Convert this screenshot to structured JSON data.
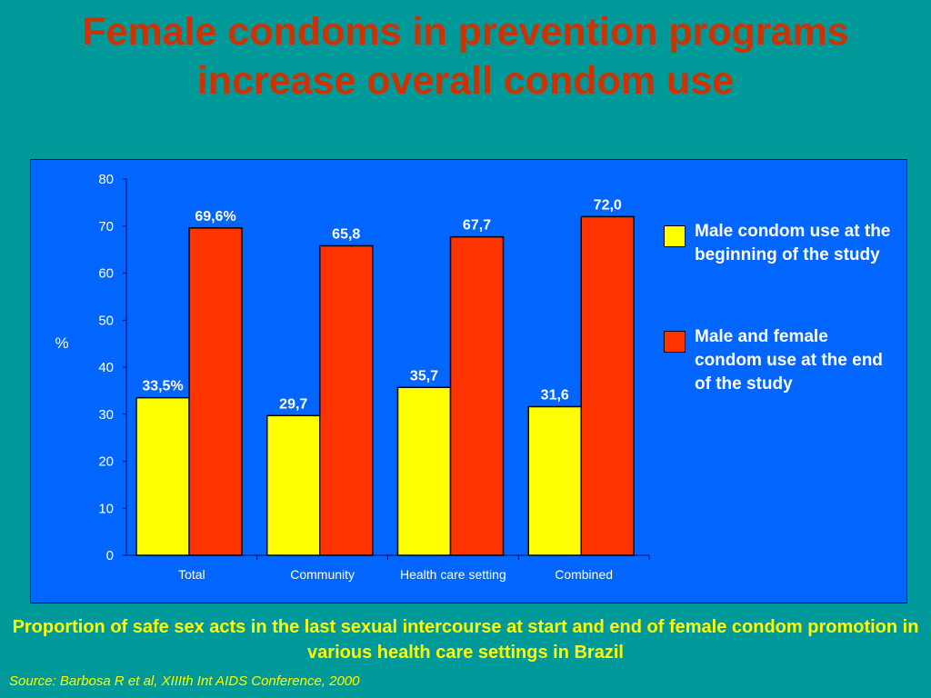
{
  "slide": {
    "title": "Female condoms in prevention programs increase overall condom use",
    "caption": "Proportion of safe sex acts in the last sexual intercourse at start and end of female condom promotion in various health care settings in Brazil",
    "source": "Source: Barbosa R et al, XIIIth Int AIDS Conference, 2000"
  },
  "colors": {
    "background": "#009999",
    "title": "#cc3300",
    "panel": "#0066ff",
    "series_start": "#ffff00",
    "series_end": "#ff3300",
    "caption": "#ffff00"
  },
  "chart_data": {
    "type": "bar",
    "ylabel": "%",
    "ylim": [
      0,
      80
    ],
    "yticks": [
      "0",
      "10",
      "20",
      "30",
      "40",
      "50",
      "60",
      "70",
      "80"
    ],
    "categories": [
      "Total",
      "Community",
      "Health care setting",
      "Combined"
    ],
    "legend_position": "right",
    "series": [
      {
        "name": "Male condom use at the beginning of the study",
        "color": "#ffff00",
        "values": [
          33.5,
          29.7,
          35.7,
          31.6
        ],
        "labels": [
          "33,5%",
          "29,7",
          "35,7",
          "31,6"
        ]
      },
      {
        "name": "Male and female condom use at the end of the study",
        "color": "#ff3300",
        "values": [
          69.6,
          65.8,
          67.7,
          72.0
        ],
        "labels": [
          "69,6%",
          "65,8",
          "67,7",
          "72,0"
        ]
      }
    ]
  }
}
